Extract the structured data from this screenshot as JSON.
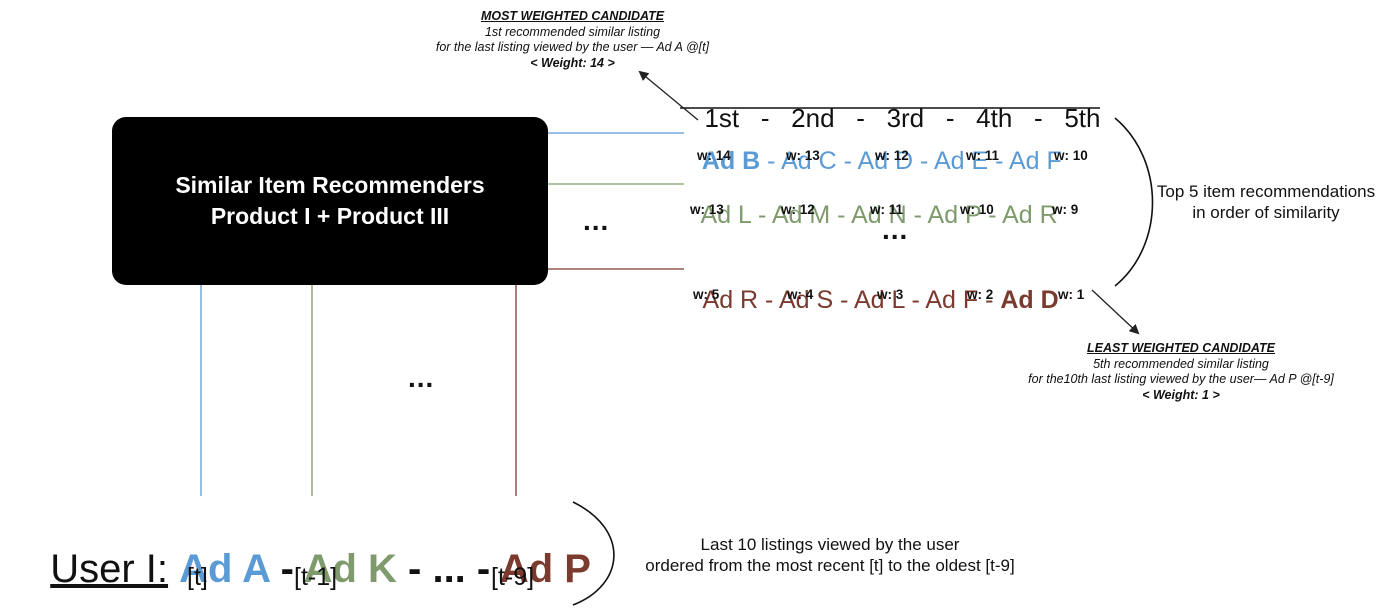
{
  "colors": {
    "blue": "#5b9bd5",
    "green": "#7f9a6c",
    "brown": "#7b3a2e",
    "black": "#000000"
  },
  "recommender_box": {
    "line1": "Similar Item Recommenders",
    "line2": "Product I + Product III"
  },
  "top_note": {
    "heading": "MOST WEIGHTED CANDIDATE",
    "line1": "1st recommended similar listing",
    "line2": "for the last listing viewed by the user — Ad A @[t]",
    "weight": "< Weight: 14 >"
  },
  "bottom_note": {
    "heading": "LEAST WEIGHTED CANDIDATE",
    "line1": "5th recommended similar listing",
    "line2": "for the10th last listing viewed by the user— Ad P @[t-9]",
    "weight": "< Weight: 1 >"
  },
  "ranks": [
    "1st",
    "2nd",
    "3rd",
    "4th",
    "5th"
  ],
  "rank_separator": "-",
  "rows": [
    {
      "items": [
        "Ad B",
        "Ad C",
        "Ad D",
        "Ad E",
        "Ad F"
      ],
      "weights": [
        "w: 14",
        "w: 13",
        "w: 12",
        "w: 11",
        "w: 10"
      ]
    },
    {
      "items": [
        "Ad L",
        "Ad M",
        "Ad N",
        "Ad P",
        "Ad R"
      ],
      "weights": [
        "w: 13",
        "w: 12",
        "w: 11",
        "w: 10",
        "w: 9"
      ]
    },
    {
      "items": [
        "Ad R",
        "Ad S",
        "Ad L",
        "Ad F",
        "Ad D"
      ],
      "weights": [
        "w: 5",
        "w: 4",
        "w: 3",
        "w: 2",
        "w: 1"
      ]
    }
  ],
  "item_separator": " - ",
  "ellipsis": "...",
  "right_desc": {
    "line1": "Top 5 item recommendations",
    "line2": "in order of similarity"
  },
  "user": {
    "label": "User I:",
    "items": [
      "Ad A",
      "Ad K",
      "...",
      "Ad P"
    ],
    "separator": " - ",
    "time_labels": [
      "[t]",
      "[t-1]",
      "[t-9]"
    ]
  },
  "bottom_desc": {
    "line1": "Last 10 listings viewed by the user",
    "line2": "ordered from the most recent [t] to the oldest [t-9]"
  }
}
